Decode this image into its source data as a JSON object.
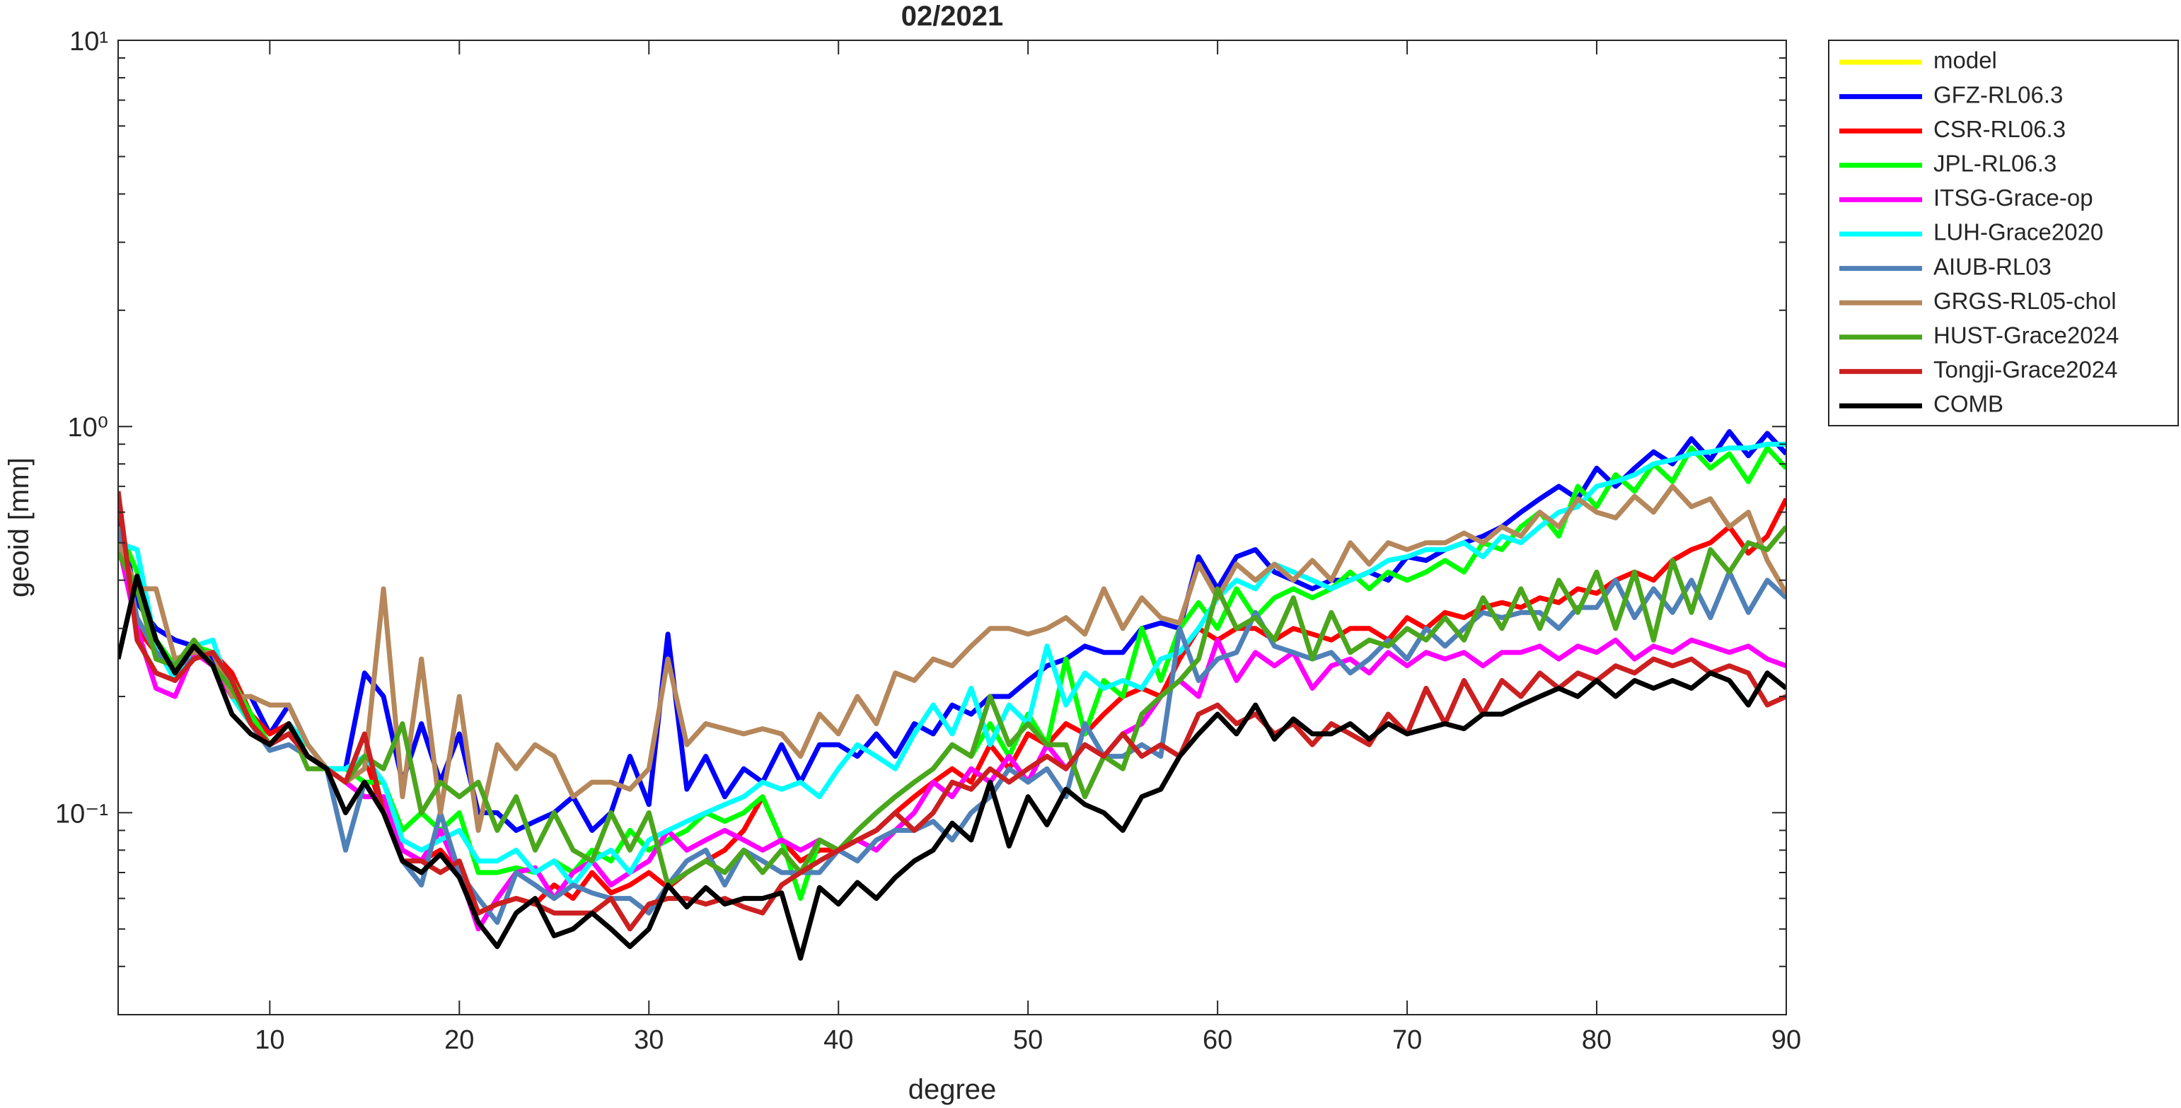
{
  "chart_data": {
    "type": "line",
    "title": "02/2021",
    "xlabel": "degree",
    "ylabel": "geoid [mm]",
    "yscale": "log",
    "grid": false,
    "legend": "outside-right",
    "xlim": [
      2,
      90
    ],
    "xticks": [
      10,
      20,
      30,
      40,
      50,
      60,
      70,
      80,
      90
    ],
    "ylim": [
      0.03,
      10
    ],
    "yticks": [
      {
        "value": 0.1,
        "label": "10⁻¹"
      },
      {
        "value": 1,
        "label": "10⁰"
      },
      {
        "value": 10,
        "label": "10¹"
      }
    ],
    "yminorticks": [
      0.04,
      0.05,
      0.06,
      0.07,
      0.08,
      0.09,
      0.2,
      0.3,
      0.4,
      0.5,
      0.6,
      0.7,
      0.8,
      0.9,
      2,
      3,
      4,
      5,
      6,
      7,
      8,
      9
    ],
    "x": [
      2,
      3,
      4,
      5,
      6,
      7,
      8,
      9,
      10,
      11,
      12,
      13,
      14,
      15,
      16,
      17,
      18,
      19,
      20,
      21,
      22,
      23,
      24,
      25,
      26,
      27,
      28,
      29,
      30,
      31,
      32,
      33,
      34,
      35,
      36,
      37,
      38,
      39,
      40,
      41,
      42,
      43,
      44,
      45,
      46,
      47,
      48,
      49,
      50,
      51,
      52,
      53,
      54,
      55,
      56,
      57,
      58,
      59,
      60,
      61,
      62,
      63,
      64,
      65,
      66,
      67,
      68,
      69,
      70,
      71,
      72,
      73,
      74,
      75,
      76,
      77,
      78,
      79,
      80,
      81,
      82,
      83,
      84,
      85,
      86,
      87,
      88,
      89,
      90
    ],
    "series": [
      {
        "name": "model",
        "color": "#ffff00",
        "values": [
          null,
          null,
          null,
          null,
          null,
          null,
          null,
          null,
          null,
          null,
          null,
          null,
          null,
          null,
          null,
          null,
          null,
          null,
          null,
          null,
          null,
          null,
          null,
          null,
          null,
          null,
          null,
          null,
          null,
          null,
          null,
          null,
          null,
          null,
          null,
          null,
          null,
          null,
          null,
          null,
          null,
          null,
          null,
          null,
          null,
          null,
          null,
          null,
          null,
          null,
          null,
          null,
          null,
          null,
          null,
          null,
          null,
          null,
          null,
          null,
          null,
          null,
          null,
          null,
          null,
          null,
          null,
          null,
          null,
          null,
          null,
          null,
          null,
          null,
          null,
          null,
          null,
          null,
          null,
          null,
          null,
          null,
          null,
          null,
          null,
          null,
          null,
          null,
          null
        ]
      },
      {
        "name": "GFZ-RL06.3",
        "color": "#0000ff",
        "values": [
          0.6,
          0.35,
          0.3,
          0.28,
          0.27,
          0.25,
          0.2,
          0.2,
          0.16,
          0.19,
          0.15,
          0.13,
          0.13,
          0.23,
          0.2,
          0.12,
          0.17,
          0.12,
          0.16,
          0.1,
          0.1,
          0.09,
          0.095,
          0.1,
          0.11,
          0.09,
          0.1,
          0.14,
          0.105,
          0.29,
          0.115,
          0.14,
          0.11,
          0.13,
          0.12,
          0.15,
          0.12,
          0.15,
          0.15,
          0.14,
          0.16,
          0.14,
          0.17,
          0.16,
          0.19,
          0.18,
          0.2,
          0.2,
          0.22,
          0.24,
          0.25,
          0.27,
          0.26,
          0.26,
          0.3,
          0.31,
          0.3,
          0.46,
          0.38,
          0.46,
          0.48,
          0.42,
          0.4,
          0.38,
          0.4,
          0.4,
          0.42,
          0.4,
          0.46,
          0.45,
          0.48,
          0.5,
          0.52,
          0.55,
          0.6,
          0.65,
          0.7,
          0.65,
          0.78,
          0.7,
          0.78,
          0.86,
          0.8,
          0.93,
          0.82,
          0.97,
          0.84,
          0.96,
          0.85
        ]
      },
      {
        "name": "CSR-RL06.3",
        "color": "#ff0000",
        "values": [
          0.65,
          0.3,
          0.26,
          0.24,
          0.25,
          0.26,
          0.23,
          0.18,
          0.16,
          0.17,
          0.15,
          0.13,
          0.12,
          0.14,
          0.1,
          0.08,
          0.075,
          0.08,
          0.07,
          0.055,
          0.058,
          0.06,
          0.058,
          0.065,
          0.06,
          0.07,
          0.062,
          0.065,
          0.07,
          0.064,
          0.07,
          0.075,
          0.08,
          0.09,
          0.11,
          0.085,
          0.075,
          0.08,
          0.08,
          0.085,
          0.09,
          0.1,
          0.11,
          0.12,
          0.13,
          0.12,
          0.15,
          0.13,
          0.16,
          0.15,
          0.17,
          0.16,
          0.18,
          0.2,
          0.21,
          0.2,
          0.25,
          0.3,
          0.28,
          0.3,
          0.3,
          0.28,
          0.3,
          0.29,
          0.28,
          0.3,
          0.3,
          0.28,
          0.32,
          0.3,
          0.33,
          0.32,
          0.34,
          0.35,
          0.34,
          0.36,
          0.35,
          0.38,
          0.37,
          0.4,
          0.42,
          0.4,
          0.45,
          0.48,
          0.5,
          0.55,
          0.47,
          0.52,
          0.65
        ]
      },
      {
        "name": "JPL-RL06.3",
        "color": "#00ff00",
        "values": [
          0.55,
          0.42,
          0.28,
          0.24,
          0.27,
          0.26,
          0.22,
          0.18,
          0.15,
          0.16,
          0.15,
          0.13,
          0.13,
          0.12,
          0.12,
          0.09,
          0.1,
          0.09,
          0.1,
          0.07,
          0.07,
          0.072,
          0.07,
          0.075,
          0.07,
          0.08,
          0.075,
          0.09,
          0.08,
          0.085,
          0.09,
          0.1,
          0.095,
          0.1,
          0.11,
          0.085,
          0.06,
          0.085,
          0.08,
          0.09,
          0.1,
          0.11,
          0.12,
          0.13,
          0.15,
          0.14,
          0.17,
          0.14,
          0.18,
          0.15,
          0.25,
          0.16,
          0.22,
          0.2,
          0.3,
          0.22,
          0.3,
          0.35,
          0.3,
          0.38,
          0.32,
          0.36,
          0.38,
          0.36,
          0.38,
          0.42,
          0.38,
          0.42,
          0.4,
          0.42,
          0.45,
          0.42,
          0.5,
          0.48,
          0.55,
          0.6,
          0.52,
          0.7,
          0.62,
          0.75,
          0.68,
          0.8,
          0.72,
          0.88,
          0.78,
          0.85,
          0.72,
          0.88,
          0.78
        ]
      },
      {
        "name": "ITSG-Grace-op",
        "color": "#ff00ff",
        "values": [
          0.5,
          0.3,
          0.21,
          0.2,
          0.26,
          0.24,
          0.2,
          0.17,
          0.15,
          0.16,
          0.14,
          0.13,
          0.12,
          0.11,
          0.11,
          0.08,
          0.075,
          0.09,
          0.07,
          0.05,
          0.06,
          0.07,
          0.072,
          0.06,
          0.07,
          0.075,
          0.065,
          0.07,
          0.075,
          0.09,
          0.08,
          0.085,
          0.09,
          0.085,
          0.08,
          0.085,
          0.08,
          0.085,
          0.08,
          0.085,
          0.08,
          0.09,
          0.1,
          0.12,
          0.11,
          0.13,
          0.12,
          0.14,
          0.12,
          0.15,
          0.13,
          0.15,
          0.14,
          0.16,
          0.17,
          0.2,
          0.22,
          0.2,
          0.28,
          0.22,
          0.26,
          0.24,
          0.26,
          0.21,
          0.24,
          0.25,
          0.23,
          0.26,
          0.24,
          0.26,
          0.25,
          0.26,
          0.24,
          0.26,
          0.26,
          0.27,
          0.25,
          0.27,
          0.26,
          0.28,
          0.25,
          0.27,
          0.26,
          0.28,
          0.27,
          0.26,
          0.27,
          0.25,
          0.24
        ]
      },
      {
        "name": "LUH-Grace2020",
        "color": "#00ffff",
        "values": [
          0.5,
          0.48,
          0.27,
          0.22,
          0.27,
          0.28,
          0.2,
          0.17,
          0.15,
          0.17,
          0.15,
          0.13,
          0.13,
          0.14,
          0.12,
          0.085,
          0.08,
          0.085,
          0.09,
          0.075,
          0.075,
          0.08,
          0.07,
          0.075,
          0.065,
          0.075,
          0.08,
          0.07,
          0.085,
          0.09,
          0.095,
          0.1,
          0.105,
          0.11,
          0.12,
          0.115,
          0.12,
          0.11,
          0.13,
          0.15,
          0.14,
          0.13,
          0.16,
          0.19,
          0.16,
          0.21,
          0.15,
          0.19,
          0.17,
          0.27,
          0.19,
          0.23,
          0.21,
          0.22,
          0.21,
          0.25,
          0.26,
          0.3,
          0.36,
          0.4,
          0.38,
          0.44,
          0.42,
          0.4,
          0.38,
          0.4,
          0.42,
          0.45,
          0.46,
          0.48,
          0.48,
          0.5,
          0.46,
          0.52,
          0.5,
          0.55,
          0.6,
          0.62,
          0.7,
          0.72,
          0.75,
          0.8,
          0.82,
          0.85,
          0.86,
          0.88,
          0.88,
          0.9,
          0.9
        ]
      },
      {
        "name": "AIUB-RL03",
        "color": "#4f81b8",
        "values": [
          0.55,
          0.32,
          0.26,
          0.24,
          0.25,
          0.26,
          0.22,
          0.17,
          0.145,
          0.15,
          0.14,
          0.13,
          0.08,
          0.12,
          0.1,
          0.075,
          0.065,
          0.1,
          0.07,
          0.06,
          0.052,
          0.07,
          0.065,
          0.06,
          0.065,
          0.062,
          0.06,
          0.06,
          0.055,
          0.065,
          0.075,
          0.08,
          0.065,
          0.08,
          0.075,
          0.07,
          0.07,
          0.07,
          0.08,
          0.075,
          0.085,
          0.09,
          0.09,
          0.095,
          0.085,
          0.1,
          0.11,
          0.13,
          0.12,
          0.13,
          0.11,
          0.17,
          0.14,
          0.14,
          0.15,
          0.14,
          0.3,
          0.22,
          0.25,
          0.26,
          0.33,
          0.27,
          0.26,
          0.25,
          0.26,
          0.23,
          0.25,
          0.28,
          0.25,
          0.3,
          0.27,
          0.3,
          0.33,
          0.32,
          0.33,
          0.33,
          0.3,
          0.34,
          0.34,
          0.4,
          0.32,
          0.38,
          0.33,
          0.4,
          0.32,
          0.42,
          0.33,
          0.4,
          0.36
        ]
      },
      {
        "name": "GRGS-RL05-chol",
        "color": "#b5875a",
        "values": [
          0.5,
          0.38,
          0.38,
          0.25,
          0.26,
          0.26,
          0.2,
          0.2,
          0.19,
          0.19,
          0.15,
          0.13,
          0.12,
          0.13,
          0.38,
          0.11,
          0.25,
          0.1,
          0.2,
          0.09,
          0.15,
          0.13,
          0.15,
          0.14,
          0.11,
          0.12,
          0.12,
          0.115,
          0.13,
          0.25,
          0.15,
          0.17,
          0.165,
          0.16,
          0.165,
          0.16,
          0.14,
          0.18,
          0.16,
          0.2,
          0.17,
          0.23,
          0.22,
          0.25,
          0.24,
          0.27,
          0.3,
          0.3,
          0.29,
          0.3,
          0.32,
          0.29,
          0.38,
          0.3,
          0.36,
          0.32,
          0.31,
          0.44,
          0.36,
          0.44,
          0.4,
          0.44,
          0.4,
          0.45,
          0.4,
          0.5,
          0.44,
          0.5,
          0.48,
          0.5,
          0.5,
          0.53,
          0.5,
          0.55,
          0.52,
          0.6,
          0.55,
          0.65,
          0.6,
          0.58,
          0.66,
          0.6,
          0.7,
          0.62,
          0.65,
          0.55,
          0.6,
          0.45,
          0.37
        ]
      },
      {
        "name": "HUST-Grace2024",
        "color": "#4aa61c",
        "values": [
          0.47,
          0.38,
          0.25,
          0.24,
          0.28,
          0.24,
          0.21,
          0.17,
          0.15,
          0.17,
          0.13,
          0.13,
          0.12,
          0.14,
          0.13,
          0.17,
          0.1,
          0.12,
          0.11,
          0.12,
          0.09,
          0.11,
          0.08,
          0.1,
          0.08,
          0.075,
          0.1,
          0.08,
          0.1,
          0.065,
          0.07,
          0.075,
          0.07,
          0.08,
          0.07,
          0.08,
          0.07,
          0.085,
          0.08,
          0.09,
          0.1,
          0.11,
          0.12,
          0.13,
          0.15,
          0.14,
          0.2,
          0.15,
          0.17,
          0.15,
          0.15,
          0.11,
          0.14,
          0.13,
          0.18,
          0.2,
          0.22,
          0.25,
          0.38,
          0.3,
          0.32,
          0.28,
          0.36,
          0.25,
          0.33,
          0.26,
          0.28,
          0.27,
          0.3,
          0.28,
          0.32,
          0.28,
          0.36,
          0.3,
          0.38,
          0.3,
          0.4,
          0.33,
          0.42,
          0.3,
          0.42,
          0.28,
          0.45,
          0.33,
          0.48,
          0.42,
          0.5,
          0.48,
          0.55
        ]
      },
      {
        "name": "Tongji-Grace2024",
        "color": "#cc1f1f",
        "values": [
          0.68,
          0.28,
          0.23,
          0.22,
          0.25,
          0.26,
          0.22,
          0.17,
          0.15,
          0.16,
          0.14,
          0.13,
          0.12,
          0.16,
          0.1,
          0.075,
          0.075,
          0.07,
          0.075,
          0.055,
          0.058,
          0.06,
          0.058,
          0.055,
          0.055,
          0.055,
          0.06,
          0.05,
          0.058,
          0.06,
          0.06,
          0.058,
          0.06,
          0.057,
          0.055,
          0.065,
          0.07,
          0.075,
          0.08,
          0.085,
          0.09,
          0.1,
          0.09,
          0.1,
          0.12,
          0.115,
          0.13,
          0.12,
          0.13,
          0.14,
          0.13,
          0.15,
          0.14,
          0.16,
          0.14,
          0.15,
          0.14,
          0.18,
          0.19,
          0.17,
          0.18,
          0.16,
          0.17,
          0.15,
          0.17,
          0.16,
          0.15,
          0.18,
          0.16,
          0.21,
          0.17,
          0.22,
          0.18,
          0.22,
          0.2,
          0.23,
          0.21,
          0.23,
          0.22,
          0.24,
          0.23,
          0.25,
          0.24,
          0.25,
          0.23,
          0.24,
          0.23,
          0.19,
          0.2
        ]
      },
      {
        "name": "COMB",
        "color": "#000000",
        "values": [
          0.25,
          0.41,
          0.28,
          0.23,
          0.27,
          0.24,
          0.18,
          0.16,
          0.15,
          0.17,
          0.14,
          0.13,
          0.1,
          0.12,
          0.1,
          0.075,
          0.07,
          0.078,
          0.068,
          0.052,
          0.045,
          0.055,
          0.06,
          0.048,
          0.05,
          0.055,
          0.05,
          0.045,
          0.05,
          0.065,
          0.057,
          0.064,
          0.058,
          0.06,
          0.06,
          0.062,
          0.042,
          0.064,
          0.058,
          0.066,
          0.06,
          0.068,
          0.075,
          0.08,
          0.094,
          0.085,
          0.12,
          0.082,
          0.11,
          0.093,
          0.115,
          0.105,
          0.1,
          0.09,
          0.11,
          0.115,
          0.14,
          0.16,
          0.18,
          0.16,
          0.19,
          0.155,
          0.175,
          0.16,
          0.16,
          0.17,
          0.155,
          0.17,
          0.16,
          0.165,
          0.17,
          0.165,
          0.18,
          0.18,
          0.19,
          0.2,
          0.21,
          0.2,
          0.22,
          0.2,
          0.22,
          0.21,
          0.22,
          0.21,
          0.23,
          0.22,
          0.19,
          0.23,
          0.21
        ]
      }
    ]
  }
}
